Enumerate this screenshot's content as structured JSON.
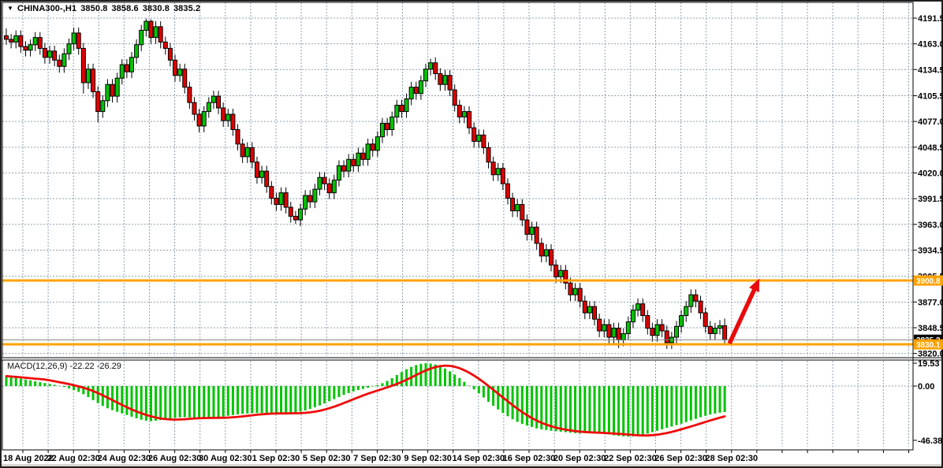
{
  "window": {
    "dropdown_icon": "▼",
    "symbol_with_period": "CHINA300-,H1",
    "open": "3850.8",
    "high": "3858.6",
    "low": "3830.8",
    "close": "3835.2"
  },
  "colors": {
    "background": "#ffffff",
    "grid": "#8fa0b0",
    "candle_up": "#00c400",
    "candle_down": "#e10000",
    "candle_outline": "#000000",
    "level_line": "#ffa200",
    "bid_line": "#808080",
    "bid_tag_bg": "#000000",
    "tag_text": "#ffffff",
    "macd_histogram": "#00c400",
    "macd_signal": "#ef0a0a",
    "arrow": "#e80b0b",
    "axis_text": "#000000",
    "frame": "#1f1f1f"
  },
  "price_axis": {
    "labels": [
      "4191.5",
      "4163.0",
      "4134.5",
      "4105.5",
      "4077.0",
      "4048.5",
      "4020.0",
      "3991.5",
      "3963.0",
      "3934.5",
      "3905.5",
      "3877.0",
      "3848.5",
      "3820.0"
    ],
    "tags": {
      "resistance": "3900.8",
      "bid": "3835.2",
      "support": "3830.1"
    }
  },
  "macd_panel": {
    "label": "MACD(12,26,9)",
    "values": "-22.22 -26.29",
    "axis_labels": [
      "19.53",
      "0.00",
      "-46.38"
    ]
  },
  "time_axis": {
    "labels": [
      "18 Aug 2022",
      "22 Aug 02:30",
      "24 Aug 02:30",
      "26 Aug 02:30",
      "30 Aug 02:30",
      "1 Sep 02:30",
      "5 Sep 02:30",
      "7 Sep 02:30",
      "9 Sep 02:30",
      "14 Sep 02:30",
      "16 Sep 02:30",
      "20 Sep 02:30",
      "22 Sep 02:30",
      "26 Sep 02:30",
      "28 Sep 02:30"
    ]
  },
  "chart_data": {
    "type": "candlestick",
    "title": "CHINA300- H1",
    "y_axis_ticks": [
      4191.5,
      4163.0,
      4134.5,
      4105.5,
      4077.0,
      4048.5,
      4020.0,
      3991.5,
      3963.0,
      3934.5,
      3905.5,
      3877.0,
      3848.5,
      3820.0
    ],
    "macd_axis_ticks": [
      19.53,
      0.0,
      -46.38
    ],
    "levels": {
      "resistance": 3900.8,
      "support": 3830.1,
      "last_price": 3835.2
    },
    "annotations": [
      {
        "type": "arrow",
        "from_price": 3831,
        "to_price": 3903,
        "near_time": "28 Sep 02:30",
        "meaning": "projected bounce from support to resistance"
      }
    ],
    "candles": [
      [
        4172,
        4180,
        4162,
        4168
      ],
      [
        4168,
        4174,
        4158,
        4165
      ],
      [
        4165,
        4178,
        4158,
        4172
      ],
      [
        4172,
        4178,
        4153,
        4160
      ],
      [
        4160,
        4166,
        4149,
        4156
      ],
      [
        4156,
        4168,
        4149,
        4162
      ],
      [
        4162,
        4176,
        4155,
        4170
      ],
      [
        4170,
        4176,
        4151,
        4158
      ],
      [
        4158,
        4164,
        4141,
        4148
      ],
      [
        4148,
        4161,
        4141,
        4155
      ],
      [
        4155,
        4161,
        4138,
        4145
      ],
      [
        4145,
        4151,
        4131,
        4138
      ],
      [
        4138,
        4158,
        4131,
        4152
      ],
      [
        4152,
        4169,
        4145,
        4163
      ],
      [
        4163,
        4181,
        4156,
        4175
      ],
      [
        4175,
        4181,
        4151,
        4158
      ],
      [
        4158,
        4164,
        4108,
        4120
      ],
      [
        4120,
        4141,
        4113,
        4135
      ],
      [
        4135,
        4141,
        4103,
        4110
      ],
      [
        4110,
        4116,
        4076,
        4088
      ],
      [
        4088,
        4106,
        4081,
        4100
      ],
      [
        4100,
        4124,
        4093,
        4118
      ],
      [
        4118,
        4124,
        4098,
        4105
      ],
      [
        4105,
        4131,
        4098,
        4125
      ],
      [
        4125,
        4146,
        4118,
        4140
      ],
      [
        4140,
        4146,
        4125,
        4132
      ],
      [
        4132,
        4154,
        4125,
        4148
      ],
      [
        4148,
        4168,
        4141,
        4162
      ],
      [
        4162,
        4184,
        4155,
        4178
      ],
      [
        4178,
        4191,
        4171,
        4188
      ],
      [
        4188,
        4190,
        4163,
        4170
      ],
      [
        4170,
        4188,
        4163,
        4182
      ],
      [
        4182,
        4188,
        4158,
        4165
      ],
      [
        4165,
        4171,
        4151,
        4158
      ],
      [
        4158,
        4164,
        4138,
        4145
      ],
      [
        4145,
        4151,
        4121,
        4128
      ],
      [
        4128,
        4141,
        4121,
        4135
      ],
      [
        4135,
        4141,
        4108,
        4115
      ],
      [
        4115,
        4121,
        4091,
        4098
      ],
      [
        4098,
        4104,
        4078,
        4085
      ],
      [
        4085,
        4091,
        4065,
        4072
      ],
      [
        4072,
        4094,
        4065,
        4088
      ],
      [
        4088,
        4104,
        4081,
        4098
      ],
      [
        4098,
        4111,
        4091,
        4105
      ],
      [
        4105,
        4111,
        4085,
        4092
      ],
      [
        4092,
        4098,
        4071,
        4078
      ],
      [
        4078,
        4091,
        4071,
        4085
      ],
      [
        4085,
        4091,
        4061,
        4068
      ],
      [
        4068,
        4074,
        4045,
        4052
      ],
      [
        4052,
        4058,
        4031,
        4038
      ],
      [
        4038,
        4054,
        4031,
        4048
      ],
      [
        4048,
        4054,
        4025,
        4032
      ],
      [
        4032,
        4038,
        4008,
        4015
      ],
      [
        4015,
        4028,
        4008,
        4022
      ],
      [
        4022,
        4028,
        3998,
        4005
      ],
      [
        4005,
        4011,
        3985,
        3992
      ],
      [
        3992,
        3998,
        3978,
        3985
      ],
      [
        3985,
        4004,
        3978,
        3998
      ],
      [
        3998,
        4004,
        3975,
        3982
      ],
      [
        3982,
        3988,
        3965,
        3972
      ],
      [
        3972,
        3978,
        3963.5,
        3968
      ],
      [
        3968,
        3986,
        3961,
        3980
      ],
      [
        3980,
        4001,
        3973,
        3995
      ],
      [
        3995,
        4001,
        3981,
        3988
      ],
      [
        3988,
        4008,
        3981,
        4002
      ],
      [
        4002,
        4021,
        3995,
        4015
      ],
      [
        4015,
        4021,
        4001,
        4008
      ],
      [
        4008,
        4014,
        3991,
        3998
      ],
      [
        3998,
        4018,
        3991,
        4012
      ],
      [
        4012,
        4034,
        4005,
        4028
      ],
      [
        4028,
        4034,
        4015,
        4022
      ],
      [
        4022,
        4041,
        4015,
        4035
      ],
      [
        4035,
        4041,
        4021,
        4028
      ],
      [
        4028,
        4048,
        4021,
        4042
      ],
      [
        4042,
        4048,
        4028,
        4035
      ],
      [
        4035,
        4058,
        4028,
        4052
      ],
      [
        4052,
        4058,
        4038,
        4045
      ],
      [
        4045,
        4066,
        4038,
        4060
      ],
      [
        4060,
        4081,
        4053,
        4075
      ],
      [
        4075,
        4081,
        4061,
        4068
      ],
      [
        4068,
        4088,
        4061,
        4082
      ],
      [
        4082,
        4101,
        4075,
        4095
      ],
      [
        4095,
        4101,
        4081,
        4088
      ],
      [
        4088,
        4108,
        4081,
        4102
      ],
      [
        4102,
        4121,
        4095,
        4115
      ],
      [
        4115,
        4121,
        4101,
        4108
      ],
      [
        4108,
        4128,
        4101,
        4122
      ],
      [
        4122,
        4141,
        4115,
        4135
      ],
      [
        4135,
        4146.5,
        4128,
        4142
      ],
      [
        4142,
        4148,
        4123,
        4130
      ],
      [
        4130,
        4136,
        4111,
        4118
      ],
      [
        4118,
        4134,
        4111,
        4128
      ],
      [
        4128,
        4134,
        4105,
        4112
      ],
      [
        4112,
        4118,
        4088,
        4095
      ],
      [
        4095,
        4101,
        4075,
        4082
      ],
      [
        4082,
        4094,
        4075,
        4088
      ],
      [
        4088,
        4094,
        4063,
        4070
      ],
      [
        4070,
        4076,
        4048,
        4055
      ],
      [
        4055,
        4068,
        4048,
        4062
      ],
      [
        4062,
        4068,
        4041,
        4048
      ],
      [
        4048,
        4054,
        4025,
        4032
      ],
      [
        4032,
        4038,
        4011,
        4018
      ],
      [
        4018,
        4031,
        4011,
        4025
      ],
      [
        4025,
        4031,
        4001,
        4008
      ],
      [
        4008,
        4014,
        3985,
        3992
      ],
      [
        3992,
        3998,
        3971,
        3978
      ],
      [
        3978,
        3991,
        3971,
        3985
      ],
      [
        3985,
        3991,
        3961,
        3968
      ],
      [
        3968,
        3974,
        3945,
        3952
      ],
      [
        3952,
        3966,
        3945,
        3960
      ],
      [
        3960,
        3966,
        3935,
        3942
      ],
      [
        3942,
        3948,
        3921,
        3928
      ],
      [
        3928,
        3941,
        3921,
        3935
      ],
      [
        3935,
        3941,
        3911,
        3918
      ],
      [
        3918,
        3924,
        3898,
        3905
      ],
      [
        3905,
        3918,
        3898,
        3912
      ],
      [
        3912,
        3918,
        3891,
        3898
      ],
      [
        3898,
        3904,
        3878,
        3885
      ],
      [
        3885,
        3898,
        3878,
        3892
      ],
      [
        3892,
        3898,
        3871,
        3878
      ],
      [
        3878,
        3884,
        3858,
        3865
      ],
      [
        3865,
        3878,
        3858,
        3872
      ],
      [
        3872,
        3878,
        3851,
        3858
      ],
      [
        3858,
        3864,
        3838,
        3845
      ],
      [
        3845,
        3858,
        3838,
        3852
      ],
      [
        3852,
        3858,
        3831,
        3838
      ],
      [
        3838,
        3854,
        3831,
        3848
      ],
      [
        3848,
        3854,
        3826,
        3835
      ],
      [
        3835,
        3848,
        3828,
        3842
      ],
      [
        3842,
        3861,
        3835,
        3855
      ],
      [
        3855,
        3874,
        3848,
        3868
      ],
      [
        3868,
        3881,
        3861,
        3875
      ],
      [
        3875,
        3881,
        3855,
        3862
      ],
      [
        3862,
        3868,
        3841,
        3848
      ],
      [
        3848,
        3854,
        3833,
        3840
      ],
      [
        3840,
        3858,
        3833,
        3852
      ],
      [
        3852,
        3858,
        3838,
        3845
      ],
      [
        3845,
        3851,
        3825,
        3832
      ],
      [
        3832,
        3844,
        3825,
        3838
      ],
      [
        3838,
        3856,
        3831,
        3850
      ],
      [
        3850,
        3868,
        3843,
        3862
      ],
      [
        3862,
        3878,
        3855,
        3872
      ],
      [
        3872,
        3891,
        3865,
        3885
      ],
      [
        3885,
        3891,
        3871,
        3878
      ],
      [
        3878,
        3884,
        3858,
        3865
      ],
      [
        3865,
        3871,
        3843,
        3850
      ],
      [
        3850,
        3856,
        3835,
        3842
      ],
      [
        3842,
        3854,
        3835,
        3848
      ],
      [
        3848,
        3857,
        3841,
        3850.8
      ],
      [
        3850.8,
        3858.6,
        3830.8,
        3835.2
      ]
    ],
    "macd_histogram": [
      8.5,
      7.8,
      7.2,
      6.4,
      5.6,
      4.9,
      4.1,
      3.4,
      2.6,
      1.8,
      1.0,
      0.2,
      -0.8,
      -2.0,
      -3.4,
      -5.0,
      -7.0,
      -9.4,
      -12.0,
      -14.6,
      -17.0,
      -19.0,
      -20.6,
      -22.0,
      -23.4,
      -24.8,
      -26.2,
      -27.6,
      -28.8,
      -29.6,
      -30.0,
      -29.6,
      -29.0,
      -28.4,
      -27.8,
      -27.2,
      -26.8,
      -26.6,
      -26.8,
      -27.2,
      -27.6,
      -27.8,
      -27.6,
      -27.2,
      -26.6,
      -26.0,
      -25.4,
      -24.8,
      -24.2,
      -23.8,
      -23.4,
      -23.2,
      -23.0,
      -23.0,
      -23.2,
      -23.4,
      -23.6,
      -23.8,
      -23.6,
      -23.2,
      -22.6,
      -21.8,
      -20.8,
      -19.6,
      -18.2,
      -16.6,
      -14.8,
      -13.0,
      -11.2,
      -9.4,
      -7.6,
      -6.0,
      -4.6,
      -3.4,
      -2.4,
      -1.4,
      -0.4,
      0.8,
      2.4,
      4.4,
      6.8,
      9.4,
      12.0,
      14.4,
      16.4,
      18.0,
      19.0,
      19.53,
      19.2,
      18.4,
      17.0,
      15.0,
      12.6,
      9.8,
      6.8,
      3.6,
      0.4,
      -2.8,
      -6.2,
      -9.8,
      -13.4,
      -16.8,
      -20.0,
      -23.0,
      -25.8,
      -28.4,
      -30.6,
      -32.4,
      -33.8,
      -35.0,
      -36.2,
      -37.0,
      -37.6,
      -38.2,
      -38.6,
      -39.0,
      -39.4,
      -39.8,
      -40.2,
      -40.4,
      -40.2,
      -40.0,
      -39.8,
      -40.2,
      -40.8,
      -41.4,
      -42.0,
      -42.6,
      -43.0,
      -43.2,
      -43.0,
      -42.4,
      -41.6,
      -40.6,
      -39.4,
      -38.2,
      -37.0,
      -35.8,
      -34.6,
      -33.4,
      -32.2,
      -30.8,
      -29.4,
      -28.0,
      -26.6,
      -25.4,
      -24.4,
      -23.5,
      -22.8,
      -22.22
    ],
    "macd_signal_period": 9
  }
}
